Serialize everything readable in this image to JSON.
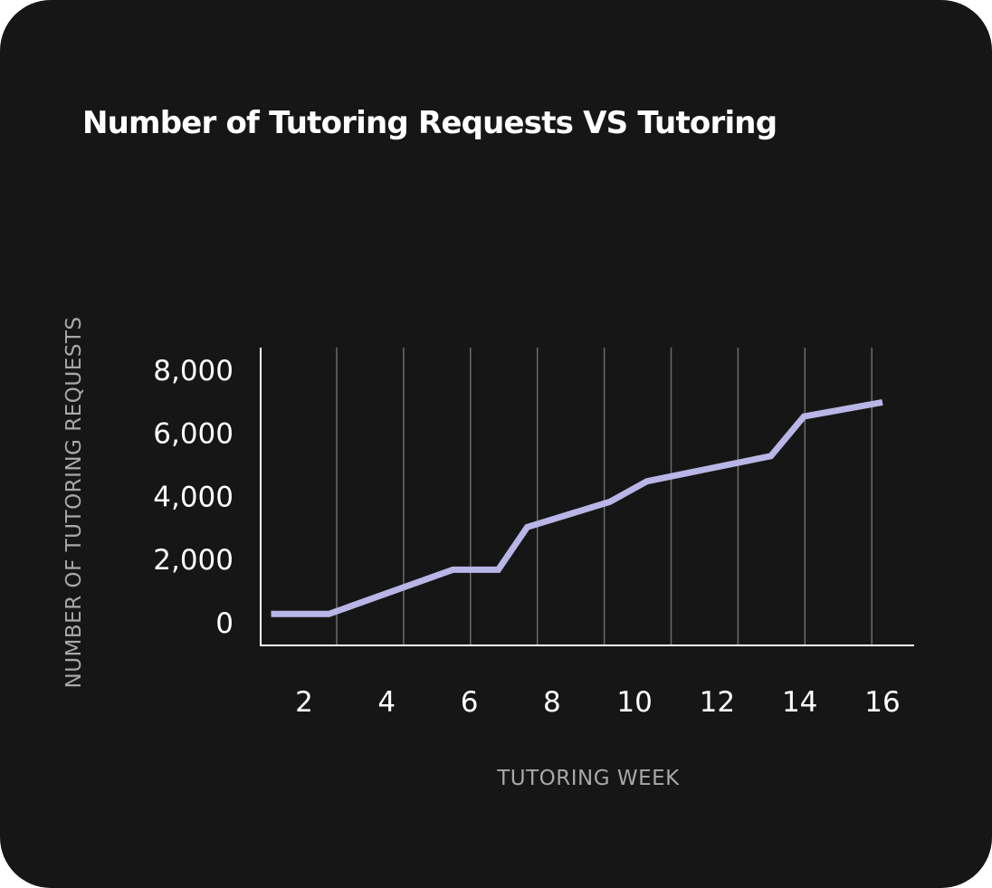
{
  "colors": {
    "background": "#161616",
    "line": "#b9b5e6",
    "axis": "#ffffff",
    "grid": "#6b6b6b",
    "title": "#ffffff",
    "axis_title": "#a8a8a8"
  },
  "chart_data": {
    "type": "line",
    "title": "Number of Tutoring Requests VS Tutoring",
    "xlabel": "TUTORING WEEK",
    "ylabel": "NUMBER OF TUTORING REQUESTS",
    "xlim": [
      1,
      16.5
    ],
    "ylim": [
      0,
      8000
    ],
    "x_ticks": [
      2,
      4,
      6,
      8,
      10,
      12,
      14,
      16
    ],
    "x_tick_labels": [
      "2",
      "4",
      "6",
      "8",
      "10",
      "12",
      "14",
      "16"
    ],
    "y_ticks": [
      0,
      2000,
      4000,
      6000,
      8000
    ],
    "y_tick_labels": [
      "0",
      "2,000",
      "4,000",
      "6,000",
      "8,000"
    ],
    "grid": "vertical",
    "legend": "none",
    "series": [
      {
        "x": [
          1.2,
          2.6,
          5.6,
          6.7,
          7.4,
          9.4,
          10.3,
          13.3,
          14.1,
          16.0
        ],
        "y": [
          250,
          250,
          1650,
          1650,
          3000,
          3800,
          4450,
          5250,
          6500,
          6950
        ]
      }
    ]
  }
}
